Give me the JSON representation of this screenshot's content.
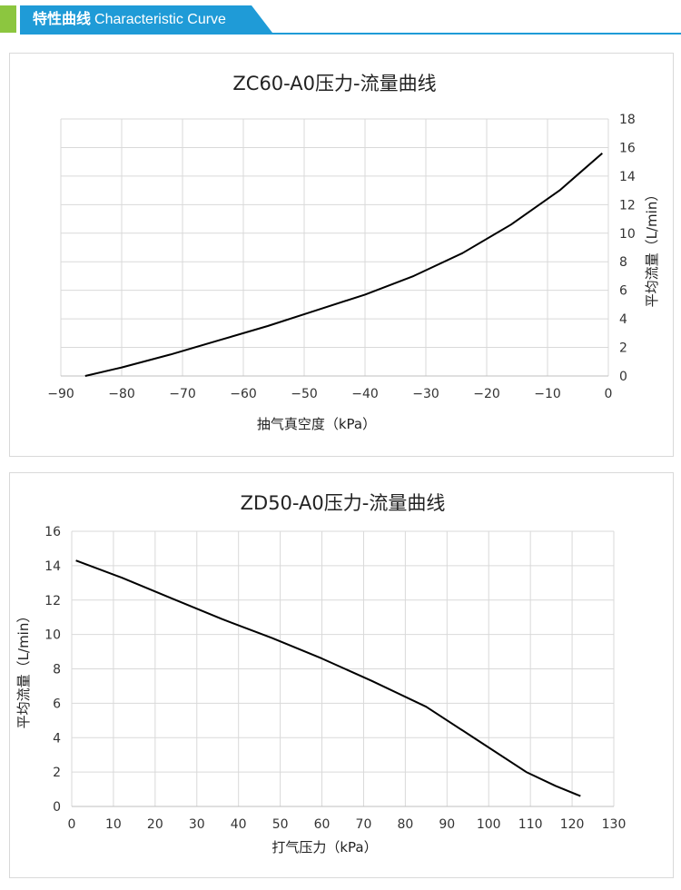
{
  "header": {
    "title_cn": "特性曲线",
    "title_en": "Characteristic Curve"
  },
  "colors": {
    "green": "#8cc63f",
    "blue": "#1f9bd7",
    "line": "#000000",
    "grid": "#d9d9d9"
  },
  "chart_data": [
    {
      "type": "line",
      "title": "ZC60-A0压力-流量曲线",
      "xlabel": "抽气真空度（kPa）",
      "ylabel": "平均流量（L/min）",
      "xlim": [
        -90,
        0
      ],
      "ylim": [
        0,
        18
      ],
      "xticks": [
        -90,
        -80,
        -70,
        -60,
        -50,
        -40,
        -30,
        -20,
        -10,
        0
      ],
      "yticks": [
        0,
        2,
        4,
        6,
        8,
        10,
        12,
        14,
        16,
        18
      ],
      "y_axis_side": "right",
      "grid": true,
      "series": [
        {
          "x": [
            -86,
            -80,
            -72,
            -64,
            -56,
            -48,
            -40,
            -32,
            -24,
            -16,
            -8,
            -1
          ],
          "y": [
            0.0,
            0.6,
            1.5,
            2.5,
            3.5,
            4.6,
            5.7,
            7.0,
            8.6,
            10.6,
            13.0,
            15.6
          ]
        }
      ]
    },
    {
      "type": "line",
      "title": "ZD50-A0压力-流量曲线",
      "xlabel": "打气压力（kPa）",
      "ylabel": "平均流量（L/min）",
      "xlim": [
        0,
        130
      ],
      "ylim": [
        0,
        16
      ],
      "xticks": [
        0,
        10,
        20,
        30,
        40,
        50,
        60,
        70,
        80,
        90,
        100,
        110,
        120,
        130
      ],
      "yticks": [
        0,
        2,
        4,
        6,
        8,
        10,
        12,
        14,
        16
      ],
      "y_axis_side": "left",
      "grid": true,
      "series": [
        {
          "x": [
            1,
            12,
            24,
            36,
            48,
            60,
            72,
            85,
            97,
            109,
            116,
            122
          ],
          "y": [
            14.3,
            13.3,
            12.1,
            10.9,
            9.8,
            8.6,
            7.3,
            5.8,
            3.9,
            2.0,
            1.2,
            0.6
          ]
        }
      ]
    }
  ]
}
